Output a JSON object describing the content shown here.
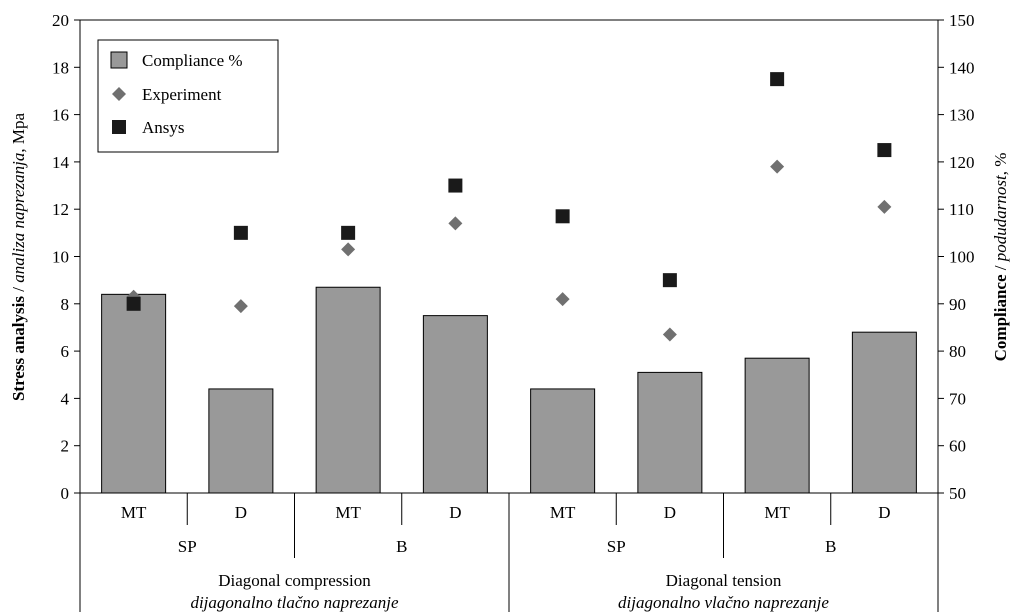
{
  "chart_data": {
    "type": "bar",
    "categories": [
      "MT",
      "D",
      "MT",
      "D",
      "MT",
      "D",
      "MT",
      "D"
    ],
    "level2": [
      "SP",
      "B",
      "SP",
      "B"
    ],
    "level3": [
      {
        "line1": "Diagonal compression",
        "line2": "dijagonalno tlačno naprezanje"
      },
      {
        "line1": "Diagonal tension",
        "line2": "dijagonalno vlačno naprezanje"
      }
    ],
    "series": [
      {
        "name": "Compliance %",
        "axis": "right",
        "kind": "bar",
        "color": "#999999",
        "values": [
          92,
          72,
          93.5,
          87.5,
          72,
          75.5,
          78.5,
          84
        ]
      },
      {
        "name": "Experiment",
        "axis": "left",
        "kind": "diamond",
        "color": "#707070",
        "values": [
          8.3,
          7.9,
          10.3,
          11.4,
          8.2,
          6.7,
          13.8,
          12.1
        ]
      },
      {
        "name": "Ansys",
        "axis": "left",
        "kind": "square",
        "color": "#1a1a1a",
        "values": [
          8.0,
          11.0,
          11.0,
          13.0,
          11.7,
          9.0,
          17.5,
          14.5
        ]
      }
    ],
    "ylim_left": [
      0,
      20
    ],
    "yticks_left": [
      0,
      2,
      4,
      6,
      8,
      10,
      12,
      14,
      16,
      18,
      20
    ],
    "ylim_right": [
      50,
      150
    ],
    "yticks_right": [
      50,
      60,
      70,
      80,
      90,
      100,
      110,
      120,
      130,
      140,
      150
    ],
    "ylabel_left": {
      "bold": "Stress analysis",
      "sep": " / ",
      "italic": "analiza naprezanja",
      "unit": ", Mpa"
    },
    "ylabel_right": {
      "bold": "Compliance",
      "sep": " / ",
      "italic": "podudarnost",
      "unit": ", %"
    },
    "legend_position": "top-left",
    "grid": false
  }
}
